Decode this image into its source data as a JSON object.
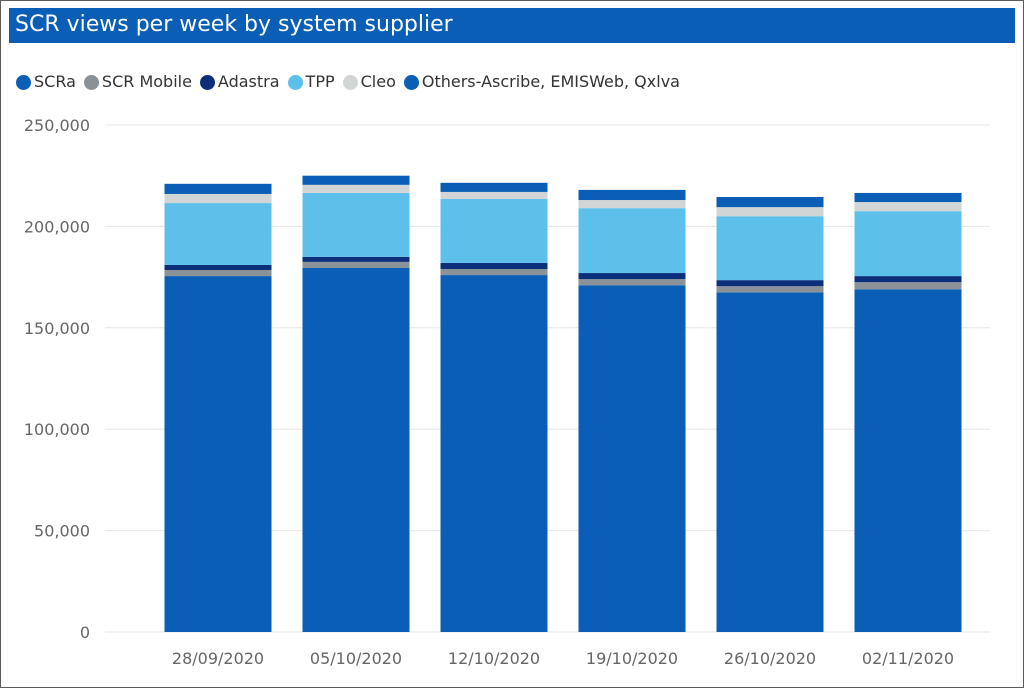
{
  "chart_data": {
    "type": "bar",
    "stacked": true,
    "title": "SCR views per week by system supplier",
    "xlabel": "",
    "ylabel": "",
    "categories": [
      "28/09/2020",
      "05/10/2020",
      "12/10/2020",
      "19/10/2020",
      "26/10/2020",
      "02/11/2020"
    ],
    "ylim": [
      0,
      250000
    ],
    "yticks": [
      0,
      50000,
      100000,
      150000,
      200000,
      250000
    ],
    "ytick_labels": [
      "0",
      "50,000",
      "100,000",
      "150,000",
      "200,000",
      "250,000"
    ],
    "grid": true,
    "legend_position": "top-left",
    "series": [
      {
        "name": "SCRa",
        "color": "#0a5eb5",
        "values": [
          175500,
          179500,
          176000,
          171000,
          167500,
          169000
        ]
      },
      {
        "name": "SCR Mobile",
        "color": "#8a9297",
        "values": [
          3000,
          3000,
          3000,
          3000,
          3000,
          3500
        ]
      },
      {
        "name": "Adastra",
        "color": "#0c2f7c",
        "values": [
          2500,
          2500,
          3000,
          3000,
          3000,
          3000
        ]
      },
      {
        "name": "TPP",
        "color": "#5cc0ea",
        "values": [
          30500,
          31500,
          31500,
          32000,
          31500,
          32000
        ]
      },
      {
        "name": "Cleo",
        "color": "#d2d5d6",
        "values": [
          4500,
          4000,
          3500,
          4000,
          4500,
          4500
        ]
      },
      {
        "name": "Others-Ascribe, EMISWeb, Qxlva",
        "color": "#0a5eb5",
        "values": [
          5000,
          4500,
          4500,
          5000,
          5000,
          4500
        ]
      }
    ]
  }
}
